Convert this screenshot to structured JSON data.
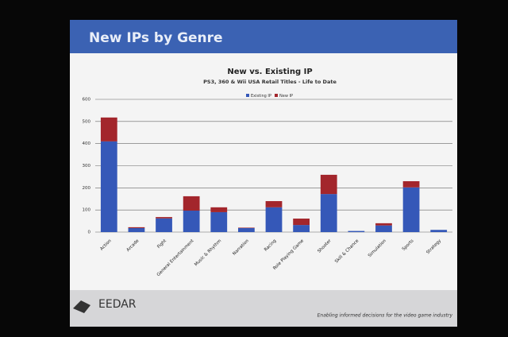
{
  "slide_title": "New IPs by Genre",
  "chart_data": {
    "type": "stacked-bar",
    "title": "New vs. Existing IP",
    "subtitle": "PS3, 360 & Wii USA Retail Titles  - Life to Date",
    "categories": [
      "Action",
      "Arcade",
      "Fight",
      "General Entertainment",
      "Music & Rhythm",
      "Narration",
      "Racing",
      "Role Playing Game",
      "Shooter",
      "Skill & Chance",
      "Simulation",
      "Sports",
      "Strategy"
    ],
    "series": [
      {
        "name": "Existing IP",
        "color": "#3558b8",
        "values": [
          410,
          18,
          62,
          97,
          90,
          18,
          112,
          32,
          172,
          5,
          30,
          202,
          10
        ]
      },
      {
        "name": "New IP",
        "color": "#a3262c",
        "values": [
          108,
          4,
          6,
          65,
          22,
          2,
          28,
          29,
          87,
          0,
          10,
          28,
          0
        ]
      }
    ],
    "ylim": [
      0,
      600
    ],
    "yticks": [
      0,
      100,
      200,
      300,
      400,
      500,
      600
    ],
    "grid": true,
    "legend": "top"
  },
  "footer": {
    "logo": "EEDAR",
    "tagline": "Enabling informed decisions for the video game industry"
  }
}
